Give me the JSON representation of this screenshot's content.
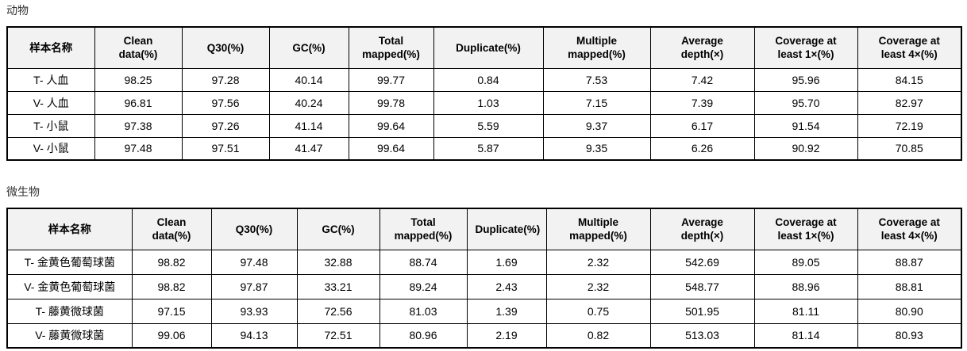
{
  "colors": {
    "header_bg": "#f2f2f2",
    "border": "#000000",
    "title_text": "#333333",
    "cell_text": "#000000"
  },
  "tables": [
    {
      "title": "动物",
      "columns": [
        "样本名称",
        "Clean data(%)",
        "Q30(%)",
        "GC(%)",
        "Total mapped(%)",
        "Duplicate(%)",
        "Multiple mapped(%)",
        "Average depth(×)",
        "Coverage at least 1×(%)",
        "Coverage at least 4×(%)"
      ],
      "rows": [
        [
          "T- 人血",
          "98.25",
          "97.28",
          "40.14",
          "99.77",
          "0.84",
          "7.53",
          "7.42",
          "95.96",
          "84.15"
        ],
        [
          "V- 人血",
          "96.81",
          "97.56",
          "40.24",
          "99.78",
          "1.03",
          "7.15",
          "7.39",
          "95.70",
          "82.97"
        ],
        [
          "T- 小鼠",
          "97.38",
          "97.26",
          "41.14",
          "99.64",
          "5.59",
          "9.37",
          "6.17",
          "91.54",
          "72.19"
        ],
        [
          "V- 小鼠",
          "97.48",
          "97.51",
          "41.47",
          "99.64",
          "5.87",
          "9.35",
          "6.26",
          "90.92",
          "70.85"
        ]
      ]
    },
    {
      "title": "微生物",
      "columns": [
        "样本名称",
        "Clean data(%)",
        "Q30(%)",
        "GC(%)",
        "Total mapped(%)",
        "Duplicate(%)",
        "Multiple mapped(%)",
        "Average depth(×)",
        "Coverage at least 1×(%)",
        "Coverage at least 4×(%)"
      ],
      "rows": [
        [
          "T- 金黄色葡萄球菌",
          "98.82",
          "97.48",
          "32.88",
          "88.74",
          "1.69",
          "2.32",
          "542.69",
          "89.05",
          "88.87"
        ],
        [
          "V- 金黄色葡萄球菌",
          "98.82",
          "97.87",
          "33.21",
          "89.24",
          "2.43",
          "2.32",
          "548.77",
          "88.96",
          "88.81"
        ],
        [
          "T- 藤黄微球菌",
          "97.15",
          "93.93",
          "72.56",
          "81.03",
          "1.39",
          "0.75",
          "501.95",
          "81.11",
          "80.90"
        ],
        [
          "V- 藤黄微球菌",
          "99.06",
          "94.13",
          "72.51",
          "80.96",
          "2.19",
          "0.82",
          "513.03",
          "81.14",
          "80.93"
        ]
      ]
    }
  ]
}
